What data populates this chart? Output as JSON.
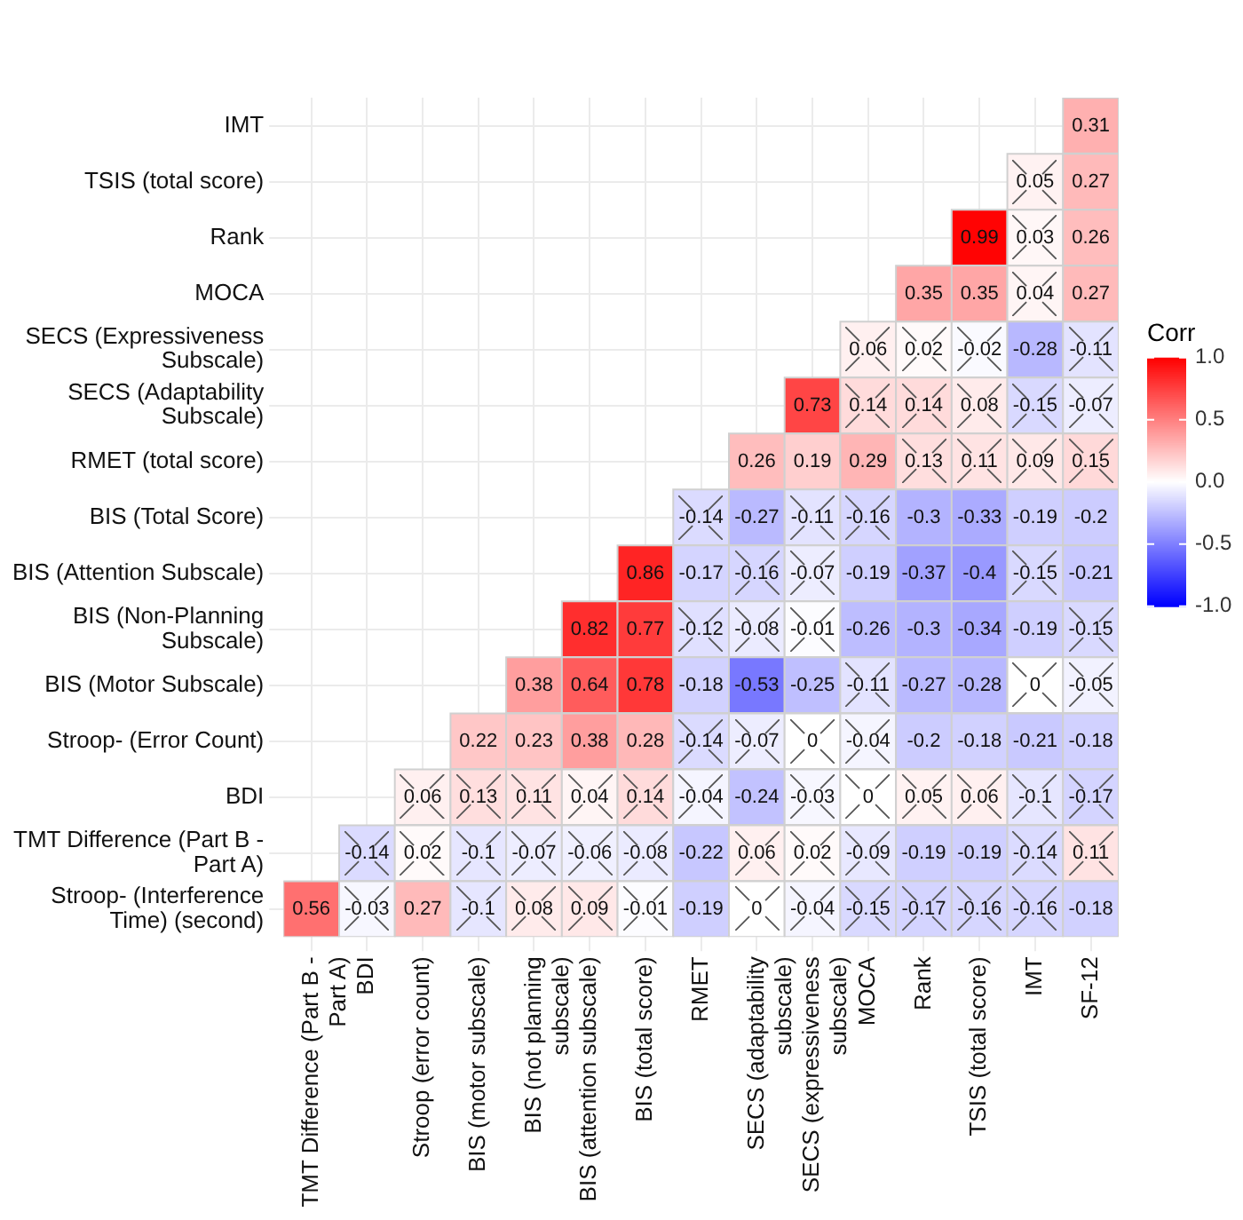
{
  "chart_data": {
    "type": "heatmap",
    "clabel": "Corr",
    "categories": [
      "TMT Difference (Part B - Part A)",
      "BDI",
      "Stroop (error count)",
      "BIS (motor subscale)",
      "BIS (not planning subscale)",
      "BIS (attention subscale)",
      "BIS (total score)",
      "RMET",
      "SECS (adaptability subscale)",
      "SECS (expressiveness subscale)",
      "MOCA",
      "Rank",
      "TSIS (total score)",
      "IMT",
      "SF-12"
    ],
    "y_categories": [
      "IMT",
      "TSIS (total score)",
      "Rank",
      "MOCA",
      "SECS (Expressiveness Subscale)",
      "SECS (Adaptability Subscale)",
      "RMET (total score)",
      "BIS (Total Score)",
      "BIS (Attention Subscale)",
      "BIS (Non-Planning Subscale)",
      "BIS (Motor Subscale)",
      "Stroop- (Error Count)",
      "BDI",
      "TMT Difference (Part B - Part A)",
      "Stroop- (Interference Time) (second)"
    ],
    "cells": [
      [
        null,
        null,
        null,
        null,
        null,
        null,
        null,
        null,
        null,
        null,
        null,
        null,
        null,
        null,
        0.31
      ],
      [
        null,
        null,
        null,
        null,
        null,
        null,
        null,
        null,
        null,
        null,
        null,
        null,
        null,
        0.05,
        0.27
      ],
      [
        null,
        null,
        null,
        null,
        null,
        null,
        null,
        null,
        null,
        null,
        null,
        null,
        0.99,
        0.03,
        0.26
      ],
      [
        null,
        null,
        null,
        null,
        null,
        null,
        null,
        null,
        null,
        null,
        null,
        0.35,
        0.35,
        0.04,
        0.27
      ],
      [
        null,
        null,
        null,
        null,
        null,
        null,
        null,
        null,
        null,
        null,
        0.06,
        0.02,
        -0.02,
        -0.28,
        -0.11
      ],
      [
        null,
        null,
        null,
        null,
        null,
        null,
        null,
        null,
        null,
        0.73,
        0.14,
        0.14,
        0.08,
        -0.15,
        -0.07
      ],
      [
        null,
        null,
        null,
        null,
        null,
        null,
        null,
        null,
        0.26,
        0.19,
        0.29,
        0.13,
        0.11,
        0.09,
        0.15
      ],
      [
        null,
        null,
        null,
        null,
        null,
        null,
        null,
        -0.14,
        -0.27,
        -0.11,
        -0.16,
        -0.3,
        -0.33,
        -0.19,
        -0.2
      ],
      [
        null,
        null,
        null,
        null,
        null,
        null,
        0.86,
        -0.17,
        -0.16,
        -0.07,
        -0.19,
        -0.37,
        -0.4,
        -0.15,
        -0.21
      ],
      [
        null,
        null,
        null,
        null,
        null,
        0.82,
        0.77,
        -0.12,
        -0.08,
        -0.01,
        -0.26,
        -0.3,
        -0.34,
        -0.19,
        -0.15
      ],
      [
        null,
        null,
        null,
        null,
        0.38,
        0.64,
        0.78,
        -0.18,
        -0.53,
        -0.25,
        -0.11,
        -0.27,
        -0.28,
        0,
        -0.05
      ],
      [
        null,
        null,
        null,
        0.22,
        0.23,
        0.38,
        0.28,
        -0.14,
        -0.07,
        0,
        -0.04,
        -0.2,
        -0.18,
        -0.21,
        -0.18
      ],
      [
        null,
        null,
        0.06,
        0.13,
        0.11,
        0.04,
        0.14,
        -0.04,
        -0.24,
        -0.03,
        0,
        0.05,
        0.06,
        -0.1,
        -0.17
      ],
      [
        null,
        -0.14,
        0.02,
        -0.1,
        -0.07,
        -0.06,
        -0.08,
        -0.22,
        0.06,
        0.02,
        -0.09,
        -0.19,
        -0.19,
        -0.14,
        0.11
      ],
      [
        0.56,
        -0.03,
        0.27,
        -0.1,
        0.08,
        0.09,
        -0.01,
        -0.19,
        0,
        -0.04,
        -0.15,
        -0.17,
        -0.16,
        -0.16,
        -0.18
      ]
    ],
    "clim": [
      -1,
      1
    ],
    "cticks": [
      {
        "value": 1,
        "label": "1.0"
      },
      {
        "value": 0.5,
        "label": "0.5"
      },
      {
        "value": 0,
        "label": "0.0"
      },
      {
        "value": -0.5,
        "label": "-0.5"
      },
      {
        "value": -1,
        "label": "-1.0"
      }
    ],
    "grid": true,
    "data_labels": true
  }
}
